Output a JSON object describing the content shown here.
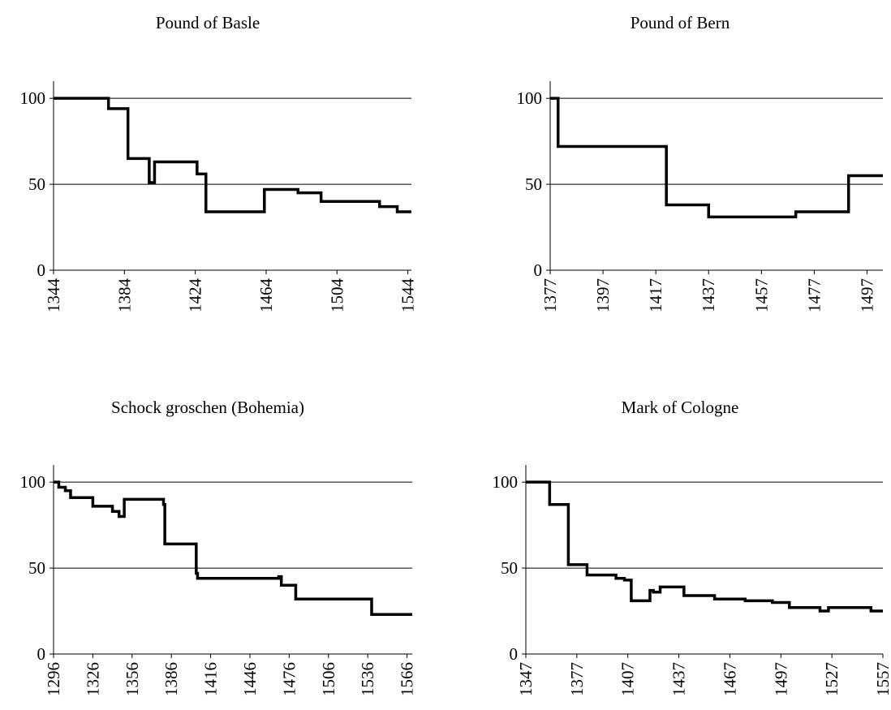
{
  "chart_data": [
    {
      "type": "line",
      "title": "Pound of Basle",
      "yticks": [
        0,
        50,
        100
      ],
      "xticks": [
        1344,
        1384,
        1424,
        1464,
        1504,
        1544
      ],
      "xlim": [
        1344,
        1546
      ],
      "ylim": [
        0,
        110
      ],
      "grid": "horizontal",
      "series": [
        {
          "step": true,
          "x": [
            1344,
            1375,
            1386,
            1398,
            1400,
            1401,
            1425,
            1430,
            1463,
            1482,
            1495,
            1528,
            1538,
            1546
          ],
          "y": [
            100,
            94,
            65,
            51,
            51,
            63,
            56,
            34,
            47,
            45,
            40,
            37,
            34,
            34
          ]
        }
      ]
    },
    {
      "type": "line",
      "title": "Pound of Bern",
      "yticks": [
        0,
        50,
        100
      ],
      "xticks": [
        1377,
        1397,
        1417,
        1437,
        1457,
        1477,
        1497
      ],
      "xlim": [
        1377,
        1503
      ],
      "ylim": [
        0,
        110
      ],
      "grid": "horizontal",
      "series": [
        {
          "step": true,
          "x": [
            1377,
            1380,
            1421,
            1437,
            1470,
            1490,
            1503
          ],
          "y": [
            100,
            72,
            38,
            31,
            34,
            55,
            55
          ]
        }
      ]
    },
    {
      "type": "line",
      "title": "Schock groschen (Bohemia)",
      "yticks": [
        0,
        50,
        100
      ],
      "xticks": [
        1296,
        1326,
        1356,
        1386,
        1416,
        1446,
        1476,
        1506,
        1536,
        1566
      ],
      "xlim": [
        1296,
        1570
      ],
      "ylim": [
        0,
        110
      ],
      "grid": "horizontal",
      "series": [
        {
          "step": true,
          "x": [
            1296,
            1300,
            1305,
            1309,
            1326,
            1341,
            1346,
            1350,
            1380,
            1381,
            1405,
            1406,
            1468,
            1470,
            1481,
            1539,
            1570
          ],
          "y": [
            100,
            97,
            95,
            91,
            86,
            83,
            80,
            90,
            87,
            64,
            47,
            44,
            45,
            40,
            32,
            23,
            23
          ]
        }
      ]
    },
    {
      "type": "line",
      "title": "Mark of Cologne",
      "yticks": [
        0,
        50,
        100
      ],
      "xticks": [
        1347,
        1377,
        1407,
        1437,
        1467,
        1497,
        1527,
        1557
      ],
      "xlim": [
        1347,
        1557
      ],
      "ylim": [
        0,
        110
      ],
      "grid": "horizontal",
      "series": [
        {
          "step": true,
          "x": [
            1347,
            1361,
            1372,
            1383,
            1400,
            1405,
            1409,
            1420,
            1422,
            1426,
            1440,
            1458,
            1476,
            1492,
            1502,
            1520,
            1525,
            1550,
            1557
          ],
          "y": [
            100,
            87,
            52,
            46,
            44,
            43,
            31,
            37,
            36,
            39,
            34,
            32,
            31,
            30,
            27,
            25,
            27,
            25,
            25
          ]
        }
      ]
    }
  ]
}
